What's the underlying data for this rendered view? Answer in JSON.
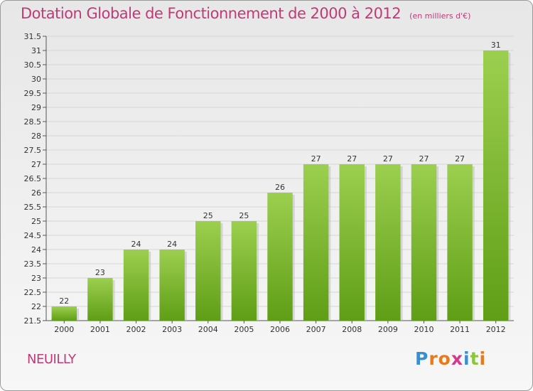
{
  "header": {
    "title": "Dotation Globale de Fonctionnement de 2000 à 2012",
    "unit": "(en milliers d'€)"
  },
  "footer": {
    "commune": "NEUILLY",
    "logo_text": "Proxiti",
    "logo_colors": [
      "#3a8fd0",
      "#e87a1e",
      "#e87a1e",
      "#d43a8c",
      "#3a8fd0",
      "#8cc63f",
      "#e87a1e"
    ]
  },
  "chart_data": {
    "type": "bar",
    "categories": [
      "2000",
      "2001",
      "2002",
      "2003",
      "2004",
      "2005",
      "2006",
      "2007",
      "2008",
      "2009",
      "2010",
      "2011",
      "2012"
    ],
    "values": [
      22,
      23,
      24,
      24,
      25,
      25,
      26,
      27,
      27,
      27,
      27,
      27,
      31
    ],
    "data_labels": [
      "22",
      "23",
      "24",
      "24",
      "25",
      "25",
      "26",
      "27",
      "27",
      "27",
      "27",
      "27",
      "31"
    ],
    "ylim": [
      21.5,
      31.5
    ],
    "yticks": [
      "21.5",
      "22",
      "22.5",
      "23",
      "23.5",
      "24",
      "24.5",
      "25",
      "25.5",
      "26",
      "26.5",
      "27",
      "27.5",
      "28",
      "28.5",
      "29",
      "29.5",
      "30",
      "30.5",
      "31",
      "31.5"
    ],
    "grid": true,
    "bar_color_top": "#9ccf4f",
    "bar_color_bottom": "#5f9e16"
  }
}
